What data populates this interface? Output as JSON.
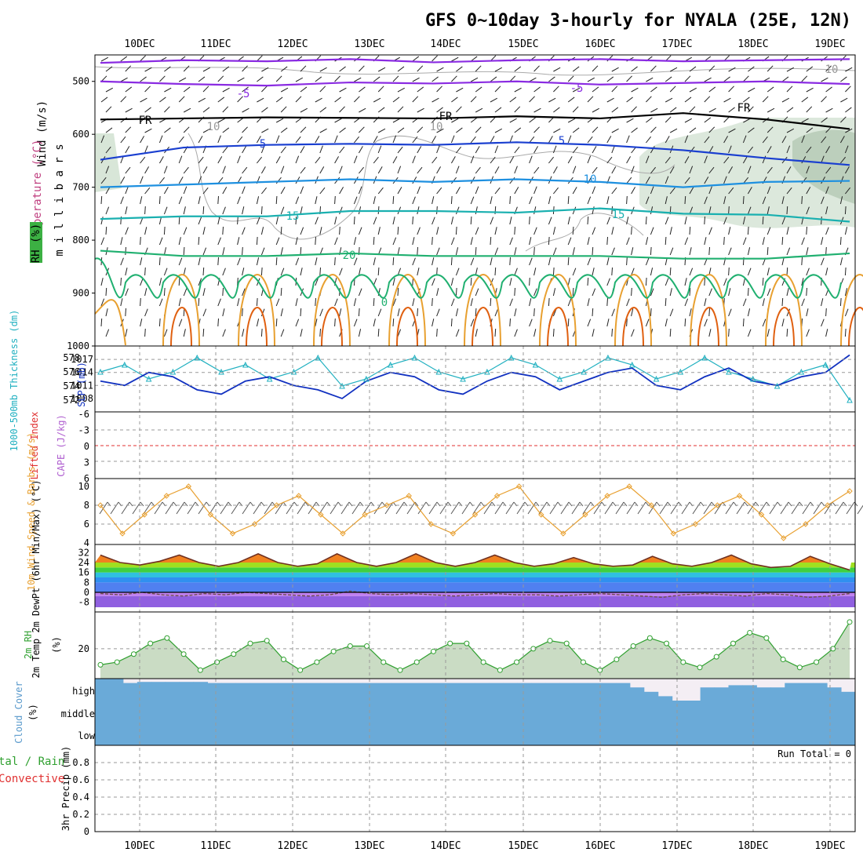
{
  "title": "GFS 0~10day 3-hourly for NYALA (25E, 12N)",
  "dates": [
    "10DEC",
    "11DEC",
    "12DEC",
    "13DEC",
    "14DEC",
    "15DEC",
    "16DEC",
    "17DEC",
    "18DEC",
    "19DEC"
  ],
  "colors": {
    "purple": "#8a2be2",
    "dark_blue": "#1a3fd0",
    "light_blue": "#1e90e0",
    "teal": "#1ab0b0",
    "green": "#20b070",
    "orange": "#e8a030",
    "dark_orange": "#e06010",
    "thickness": "#20b0c0",
    "slp": "#1030c0",
    "wind_speed": "#e8a030",
    "rh_fill": "#d8e6d8",
    "rh_line": "#30a030",
    "cloud": "#6aaad8",
    "cloud_gap": "#f4eef4"
  },
  "chart_data": [
    {
      "type": "contour-section",
      "name": "upper-air",
      "ylabel": [
        "Wind (m/s)",
        "Temperature (°C)",
        "RH (%)"
      ],
      "axis_label": "m i l l i b a r s",
      "y_ticks": [
        500,
        600,
        700,
        800,
        900,
        1000
      ],
      "ylim": [
        450,
        1000
      ],
      "isotherms": [
        {
          "label": "-5",
          "p": [
            500,
            505,
            508,
            502,
            504,
            500,
            506,
            503,
            500,
            505
          ]
        },
        {
          "label": "-5",
          "p": [
            465,
            460,
            462,
            458,
            464,
            460,
            458,
            462,
            460,
            458
          ]
        },
        {
          "label": "FR",
          "p": [
            572,
            570,
            568,
            569,
            570,
            566,
            570,
            560,
            572,
            590
          ]
        },
        {
          "label": "5",
          "p": [
            648,
            625,
            620,
            618,
            620,
            615,
            620,
            630,
            645,
            658
          ]
        },
        {
          "label": "10",
          "p": [
            700,
            695,
            690,
            685,
            690,
            685,
            690,
            700,
            690,
            688
          ]
        },
        {
          "label": "15",
          "p": [
            760,
            755,
            755,
            745,
            745,
            748,
            740,
            750,
            752,
            765
          ]
        },
        {
          "label": "20",
          "p": [
            820,
            830,
            830,
            825,
            830,
            830,
            830,
            835,
            835,
            825
          ]
        }
      ],
      "contour_labels": [
        "-5",
        "-5",
        "FR",
        "FR",
        "FR",
        "5",
        "5",
        "10",
        "15",
        "15",
        "20",
        "0",
        "10",
        "10",
        "10"
      ]
    },
    {
      "type": "line",
      "name": "thickness-slp",
      "ylabel_left": "1000-500mb Thickness (dm)",
      "ylabel_right": "SLP (mb)",
      "left_ticks": [
        572,
        574,
        576,
        578
      ],
      "right_ticks": [
        1008,
        1011,
        1014,
        1017
      ],
      "thickness": [
        576,
        577,
        575,
        576,
        578,
        576,
        577,
        575,
        576,
        578,
        574,
        575,
        577,
        578,
        576,
        575,
        576,
        578,
        577,
        575,
        576,
        578,
        577,
        575,
        576,
        578,
        576,
        575,
        574,
        576,
        577,
        572
      ],
      "slp": [
        1012,
        1011,
        1014,
        1013,
        1010,
        1009,
        1012,
        1013,
        1011,
        1010,
        1008,
        1012,
        1014,
        1013,
        1010,
        1009,
        1012,
        1014,
        1013,
        1010,
        1012,
        1014,
        1015,
        1011,
        1010,
        1013,
        1015,
        1012,
        1011,
        1013,
        1014,
        1018
      ]
    },
    {
      "type": "line",
      "name": "lifted-cape",
      "ylabel_left": "Lifted Index",
      "ylabel_right": "CAPE (J/kg)",
      "y_ticks": [
        "-6",
        "-3",
        "0",
        "3",
        "6"
      ],
      "lifted_index": [],
      "cape": []
    },
    {
      "type": "line",
      "name": "wind10m",
      "ylabel": "10m Wind Speed & Barbs (m/s)",
      "y_ticks": [
        4,
        6,
        8,
        10
      ],
      "values": [
        8,
        5,
        7,
        9,
        10,
        7,
        5,
        6,
        8,
        9,
        7,
        5,
        7,
        8,
        9,
        6,
        5,
        7,
        9,
        10,
        7,
        5,
        7,
        9,
        10,
        8,
        5,
        6,
        8,
        9,
        7,
        4.5,
        6,
        8,
        9.5
      ]
    },
    {
      "type": "area",
      "name": "temp2m",
      "ylabel": "2m Temp 2m DewPt (6hr Min/Max) (°C)",
      "y_ticks": [
        32,
        24,
        16,
        8,
        0,
        -8
      ],
      "temp": [
        30,
        24,
        22,
        25,
        30,
        24,
        21,
        24,
        31,
        24,
        21,
        23,
        31,
        24,
        21,
        24,
        31,
        24,
        21,
        24,
        30,
        24,
        21,
        23,
        28,
        23,
        21,
        22,
        29,
        23,
        21,
        24,
        30,
        23,
        20,
        21,
        29,
        23,
        18
      ],
      "dewpt": [
        -1,
        -2,
        0,
        -2,
        -3,
        -1,
        -2,
        0,
        -1,
        -2,
        -3,
        -2,
        1,
        -1,
        -2,
        -1,
        -2,
        -3,
        -2,
        -1,
        -2,
        -2,
        -3,
        -2,
        -1,
        -2,
        -3,
        -4,
        -2,
        -1,
        -2,
        -3,
        -1,
        -2,
        -4,
        -3,
        -1
      ]
    },
    {
      "type": "area",
      "name": "rh2m",
      "ylabel": "2m RH (%)",
      "y_ticks": [
        20
      ],
      "values": [
        14,
        15,
        18,
        22,
        24,
        18,
        12,
        15,
        18,
        22,
        23,
        16,
        12,
        15,
        19,
        21,
        21,
        15,
        12,
        15,
        19,
        22,
        22,
        15,
        12,
        15,
        20,
        23,
        22,
        15,
        12,
        16,
        21,
        24,
        22,
        15,
        13,
        17,
        22,
        26,
        24,
        16,
        13,
        15,
        20,
        30
      ]
    },
    {
      "type": "area",
      "name": "cloud",
      "ylabel": "Cloud Cover (%)",
      "levels": [
        "high",
        "middle",
        "low"
      ],
      "high": [
        100,
        100,
        80,
        85,
        85,
        85,
        85,
        85,
        80,
        80,
        80,
        80,
        80,
        80,
        80,
        80,
        80,
        80,
        80,
        80,
        80,
        80,
        80,
        80,
        80,
        80,
        80,
        80,
        80,
        80,
        80,
        80,
        80,
        80,
        80,
        80,
        80,
        80,
        60,
        40,
        20,
        0,
        0,
        60,
        60,
        70,
        70,
        60,
        60,
        80,
        80,
        80,
        60,
        40
      ],
      "middle": [
        100
      ],
      "low": [
        100
      ]
    },
    {
      "type": "bar",
      "name": "precip",
      "ylabel_left": "tal / Rain",
      "ylabel_left2": "Convective",
      "ylabel": "3hr Precip (mm)",
      "y_ticks": [
        0,
        0.2,
        0.4,
        0.6,
        0.8
      ],
      "run_total_label": "Run Total = 0",
      "values": []
    }
  ]
}
